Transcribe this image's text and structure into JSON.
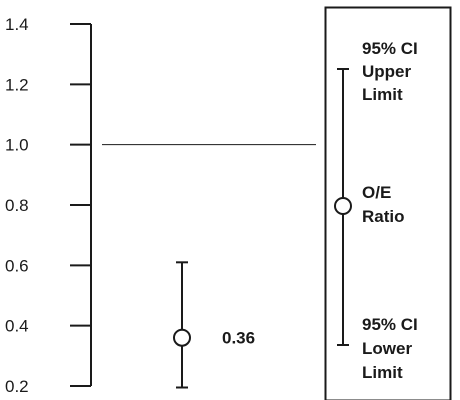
{
  "chart_data": {
    "type": "scatter",
    "ylim": [
      0.2,
      1.4
    ],
    "yticks": [
      "1.4",
      "1.2",
      "1.0",
      "0.8",
      "0.6",
      "0.4",
      "0.2"
    ],
    "yticks_values": [
      1.4,
      1.2,
      1.0,
      0.8,
      0.6,
      0.4,
      0.2
    ],
    "reference_line": 1.0,
    "points": [
      {
        "value": 0.36,
        "lower": 0.195,
        "upper": 0.61,
        "label": "0.36"
      }
    ],
    "legend": {
      "upper_label": [
        "95% CI",
        "Upper",
        "Limit"
      ],
      "ratio_label": [
        "O/E",
        "Ratio"
      ],
      "lower_label": [
        "95% CI",
        "Lower",
        "Limit"
      ]
    },
    "colors": {
      "ink": "#1a1a1a",
      "background": "#ffffff"
    },
    "grid": false
  }
}
